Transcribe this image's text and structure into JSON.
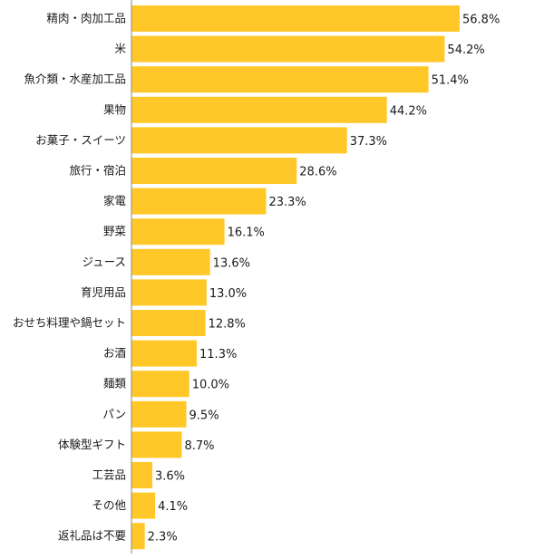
{
  "chart_data": {
    "type": "bar",
    "orientation": "horizontal",
    "unit": "%",
    "categories": [
      "精肉・肉加工品",
      "米",
      "魚介類・水産加工品",
      "果物",
      "お菓子・スイーツ",
      "旅行・宿泊",
      "家電",
      "野菜",
      "ジュース",
      "育児用品",
      "おせち料理や鍋セット",
      "お酒",
      "麺類",
      "パン",
      "体験型ギフト",
      "工芸品",
      "その他",
      "返礼品は不要"
    ],
    "values": [
      56.8,
      54.2,
      51.4,
      44.2,
      37.3,
      28.6,
      23.3,
      16.1,
      13.6,
      13.0,
      12.8,
      11.3,
      10.0,
      9.5,
      8.7,
      3.6,
      4.1,
      2.3
    ],
    "labels": [
      "56.8%",
      "54.2%",
      "51.4%",
      "44.2%",
      "37.3%",
      "28.6%",
      "23.3%",
      "16.1%",
      "13.6%",
      "13.0%",
      "12.8%",
      "11.3%",
      "10.0%",
      "9.5%",
      "8.7%",
      "3.6%",
      "4.1%",
      "2.3%"
    ],
    "xlim": [
      0,
      80
    ],
    "grid": false,
    "bar_color": "#FFC828",
    "axis_color": "#888888"
  }
}
